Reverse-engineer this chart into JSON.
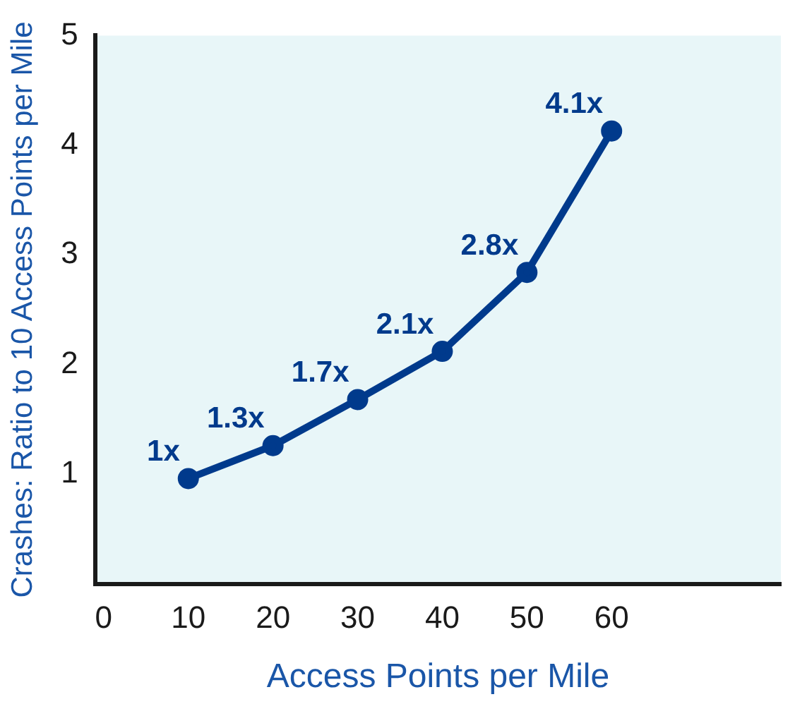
{
  "chart_data": {
    "type": "line",
    "xlabel": "Access Points per Mile",
    "ylabel": "Crashes: Ratio to 10 Access Points per Mile",
    "x": [
      10,
      20,
      30,
      40,
      50,
      60
    ],
    "series": [
      {
        "color": "#003a8c",
        "values": [
          0.96,
          1.26,
          1.68,
          2.12,
          2.84,
          4.13
        ],
        "value_labels": [
          "1x",
          "1.3x",
          "1.7x",
          "2.1x",
          "2.8x",
          "4.1x"
        ]
      }
    ],
    "xlim": [
      -1,
      80
    ],
    "xticks": [
      0,
      10,
      20,
      30,
      40,
      50,
      60
    ],
    "ylim": [
      0,
      5
    ],
    "yticks": [
      1,
      2,
      3,
      4,
      5
    ],
    "grid": false,
    "legend": false,
    "marker": "circle",
    "line_style": "solid"
  }
}
